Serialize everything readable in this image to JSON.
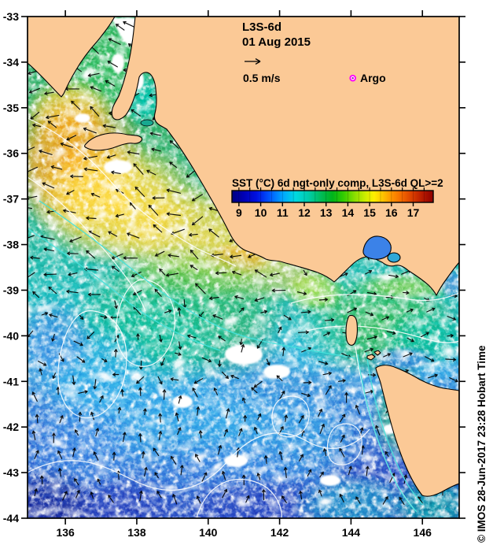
{
  "map": {
    "title_line1": "L3S-6d",
    "title_line2": "01 Aug 2015",
    "vector_legend_label": "0.5 m/s",
    "argo": {
      "label": "Argo",
      "lon": 144.05,
      "lat": -34.35,
      "color": "#ff00ff"
    },
    "credit": "© IMOS 28-Jun-2017 23:28 Hobart Time",
    "axes": {
      "lon_range": [
        134.94,
        147.03
      ],
      "lat_range": [
        -33,
        -44
      ],
      "lon_ticks": [
        136,
        138,
        140,
        142,
        144,
        146
      ],
      "lat_ticks": [
        -33,
        -34,
        -35,
        -36,
        -37,
        -38,
        -39,
        -40,
        -41,
        -42,
        -43,
        -44
      ]
    },
    "colorbar": {
      "title": "SST (°C) 6d ngt-only comp, L3S-6d QL>=2",
      "title_color": "#8b1500",
      "range": [
        8.68,
        17.92
      ],
      "ticks": [
        9,
        10,
        11,
        12,
        13,
        14,
        15,
        16,
        17
      ],
      "stops": [
        [
          8.68,
          "#00007f"
        ],
        [
          9.2,
          "#0000b3"
        ],
        [
          9.8,
          "#0010e0"
        ],
        [
          10.4,
          "#0055ff"
        ],
        [
          11.0,
          "#00a4ff"
        ],
        [
          11.6,
          "#00d9e0"
        ],
        [
          12.2,
          "#00ccaa"
        ],
        [
          12.8,
          "#00bb55"
        ],
        [
          13.3,
          "#00b31a"
        ],
        [
          13.8,
          "#33cc00"
        ],
        [
          14.3,
          "#88dd00"
        ],
        [
          14.8,
          "#ccee00"
        ],
        [
          15.2,
          "#ffee00"
        ],
        [
          15.6,
          "#ffc400"
        ],
        [
          16.0,
          "#ff9500"
        ],
        [
          16.5,
          "#f26600"
        ],
        [
          17.0,
          "#d63a00"
        ],
        [
          17.5,
          "#b01500"
        ],
        [
          17.92,
          "#8c0000"
        ]
      ]
    },
    "colors": {
      "land": "#fbc996",
      "coastline": "#000000",
      "ocean_contour": "#ffffff",
      "shelf_front_contour": "#45e2dc",
      "current_vector": "#000000"
    }
  }
}
